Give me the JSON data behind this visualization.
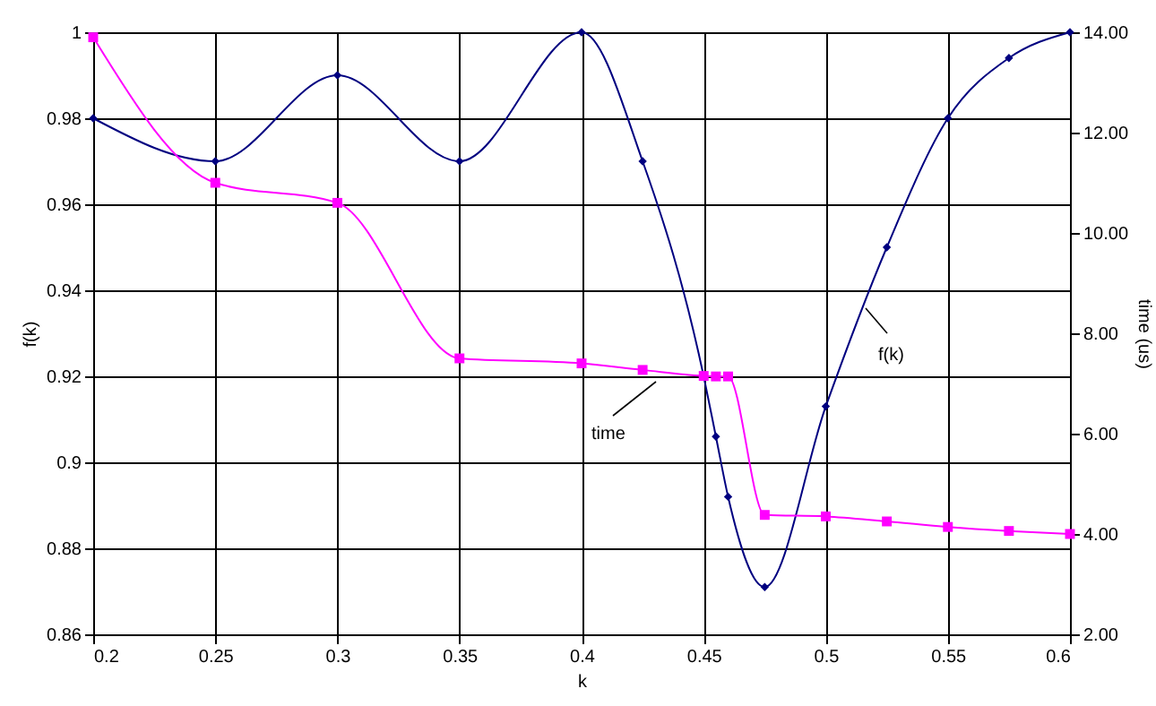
{
  "chart_data": {
    "type": "line",
    "xlabel": "k",
    "ylabel": "f(k)",
    "y2label": "time (us)",
    "x": [
      0.2,
      0.25,
      0.3,
      0.35,
      0.4,
      0.425,
      0.45,
      0.455,
      0.46,
      0.475,
      0.5,
      0.525,
      0.55,
      0.575,
      0.6
    ],
    "series": [
      {
        "name": "f(k)",
        "color": "#000080",
        "marker": "diamond",
        "values": [
          0.98,
          0.97,
          0.99,
          0.97,
          1.0,
          0.97,
          0.92,
          0.906,
          0.892,
          0.871,
          0.913,
          0.95,
          0.98,
          0.994,
          1.0
        ]
      },
      {
        "name": "time",
        "color": "#ff00ff",
        "marker": "square",
        "axis": "y2",
        "values": [
          13.9,
          11.0,
          10.6,
          7.5,
          7.4,
          7.27,
          7.15,
          7.14,
          7.14,
          4.38,
          4.35,
          4.25,
          4.14,
          4.06,
          4.0
        ]
      }
    ],
    "xlim": [
      0.2,
      0.6
    ],
    "xticks": [
      0.2,
      0.25,
      0.3,
      0.35,
      0.4,
      0.45,
      0.5,
      0.55,
      0.6
    ],
    "ylim": [
      0.86,
      1
    ],
    "yticks": [
      0.86,
      0.88,
      0.9,
      0.92,
      0.94,
      0.96,
      0.98,
      1
    ],
    "y2lim": [
      2,
      14
    ],
    "y2ticks": [
      {
        "value": 2,
        "label": "2.00"
      },
      {
        "value": 4,
        "label": "4.00"
      },
      {
        "value": 6,
        "label": "6.00"
      },
      {
        "value": 8,
        "label": "8.00"
      },
      {
        "value": 10,
        "label": "10.00"
      },
      {
        "value": 12,
        "label": "12.00"
      },
      {
        "value": 14,
        "label": "14.00"
      }
    ],
    "grid": true,
    "line_style": "solid"
  }
}
